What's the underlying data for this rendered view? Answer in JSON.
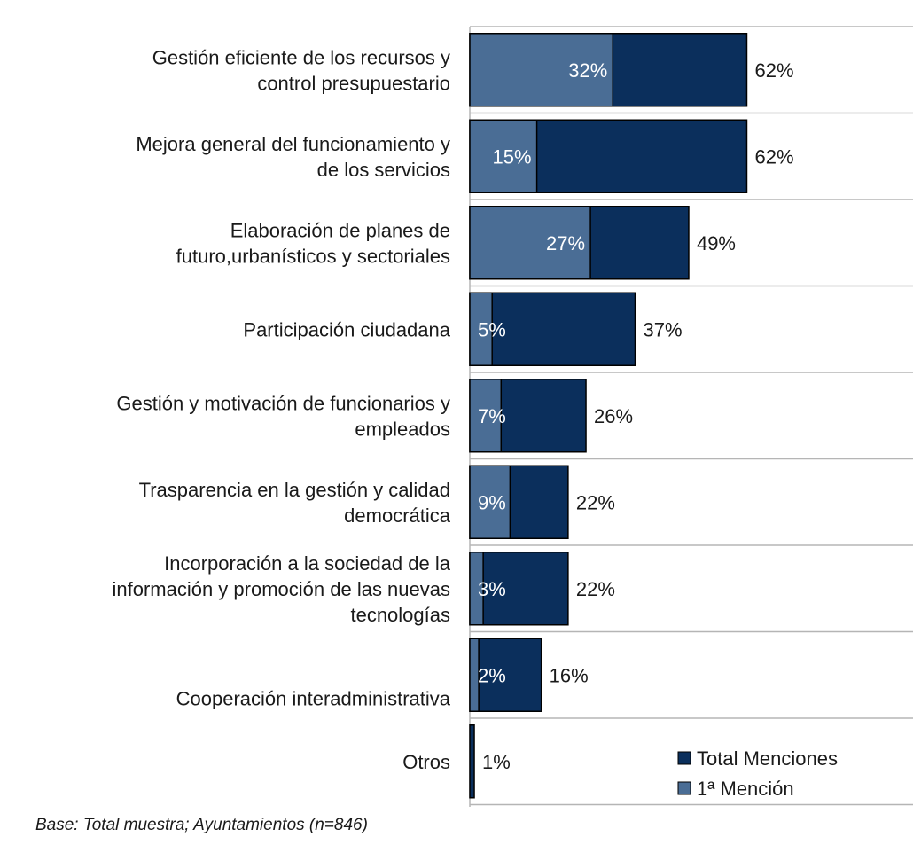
{
  "chart_data": {
    "type": "bar",
    "orientation": "horizontal",
    "categories": [
      [
        "Gestión eficiente de los recursos y",
        "control presupuestario"
      ],
      [
        "Mejora general del funcionamiento y",
        "de los servicios"
      ],
      [
        "Elaboración de planes de",
        "futuro,urbanísticos y sectoriales"
      ],
      [
        "Participación ciudadana"
      ],
      [
        "Gestión y motivación de funcionarios y",
        "empleados"
      ],
      [
        "Trasparencia en la gestión y calidad",
        "democrática"
      ],
      [
        "Incorporación a la sociedad de la",
        "información y promoción de las nuevas",
        "tecnologías"
      ],
      [
        "Cooperación interadministrativa"
      ],
      [
        "Otros"
      ]
    ],
    "series": [
      {
        "name": "Total Menciones",
        "values": [
          62,
          62,
          49,
          37,
          26,
          22,
          22,
          16,
          1
        ],
        "labels": [
          "62%",
          "62%",
          "49%",
          "37%",
          "26%",
          "22%",
          "22%",
          "16%",
          "1%"
        ]
      },
      {
        "name": "1ª Mención",
        "values": [
          32,
          15,
          27,
          5,
          7,
          9,
          3,
          2,
          0
        ],
        "labels": [
          "32%",
          "15%",
          "27%",
          "5%",
          "7%",
          "9%",
          "3%",
          "2%",
          ""
        ]
      }
    ],
    "xlim": [
      0,
      100
    ],
    "grid": false,
    "legend_position": "bottom-right",
    "colors": {
      "total": "#0b2f5c",
      "first": "#4a6d95",
      "outline": "#000000",
      "separator": "#b5b5b5"
    }
  },
  "footnote": "Base:  Total muestra; Ayuntamientos (n=846)"
}
